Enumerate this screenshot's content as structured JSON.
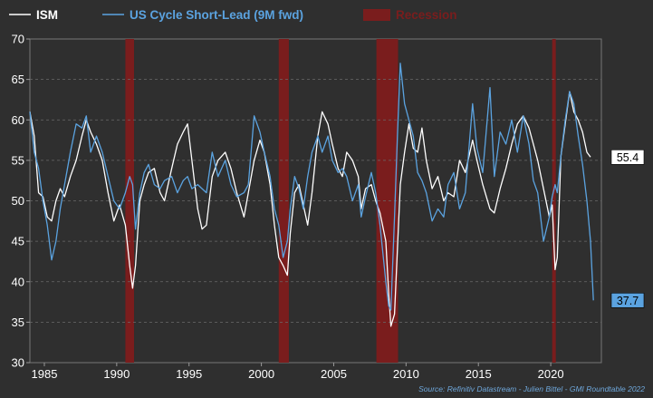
{
  "chart_data": {
    "type": "line",
    "xlim": [
      1984,
      2023.5
    ],
    "ylim": [
      30,
      70
    ],
    "x_ticks": [
      1985,
      1990,
      1995,
      2000,
      2005,
      2010,
      2015,
      2020
    ],
    "y_ticks": [
      30,
      35,
      40,
      45,
      50,
      55,
      60,
      65,
      70
    ],
    "grid": "horizontal-dashed",
    "legend_position": "top-left",
    "source": "Source: Refinitiv Datastream - Julien Bittel - GMI Roundtable 2022",
    "recession": {
      "name": "Recession",
      "color": "#7a1d1d",
      "periods": [
        [
          1990.6,
          1991.2
        ],
        [
          2001.2,
          2001.9
        ],
        [
          2007.95,
          2009.45
        ],
        [
          2020.1,
          2020.35
        ]
      ]
    },
    "series": [
      {
        "name": "ISM",
        "color": "#ffffff",
        "end_value": "55.4",
        "points": [
          [
            1984.0,
            61.0
          ],
          [
            1984.3,
            58.0
          ],
          [
            1984.6,
            51.0
          ],
          [
            1984.9,
            50.5
          ],
          [
            1985.2,
            48.0
          ],
          [
            1985.5,
            47.5
          ],
          [
            1985.8,
            50.0
          ],
          [
            1986.1,
            51.5
          ],
          [
            1986.4,
            50.5
          ],
          [
            1986.8,
            53.0
          ],
          [
            1987.2,
            55.0
          ],
          [
            1987.6,
            58.0
          ],
          [
            1987.9,
            60.0
          ],
          [
            1988.2,
            58.5
          ],
          [
            1988.6,
            57.0
          ],
          [
            1989.0,
            55.0
          ],
          [
            1989.4,
            51.0
          ],
          [
            1989.8,
            47.5
          ],
          [
            1990.2,
            49.5
          ],
          [
            1990.6,
            47.0
          ],
          [
            1990.9,
            42.0
          ],
          [
            1991.1,
            39.2
          ],
          [
            1991.3,
            42.0
          ],
          [
            1991.6,
            50.0
          ],
          [
            1991.9,
            52.0
          ],
          [
            1992.2,
            53.5
          ],
          [
            1992.6,
            54.0
          ],
          [
            1993.0,
            51.0
          ],
          [
            1993.3,
            50.0
          ],
          [
            1993.8,
            54.0
          ],
          [
            1994.2,
            57.0
          ],
          [
            1994.6,
            58.5
          ],
          [
            1994.9,
            59.5
          ],
          [
            1995.2,
            55.0
          ],
          [
            1995.6,
            49.0
          ],
          [
            1995.9,
            46.5
          ],
          [
            1996.2,
            47.0
          ],
          [
            1996.6,
            53.0
          ],
          [
            1997.0,
            55.0
          ],
          [
            1997.5,
            56.0
          ],
          [
            1997.9,
            54.0
          ],
          [
            1998.3,
            51.0
          ],
          [
            1998.8,
            48.0
          ],
          [
            1999.1,
            51.0
          ],
          [
            1999.5,
            55.0
          ],
          [
            1999.9,
            57.5
          ],
          [
            2000.2,
            56.0
          ],
          [
            2000.6,
            52.0
          ],
          [
            2000.9,
            47.0
          ],
          [
            2001.2,
            43.0
          ],
          [
            2001.5,
            42.0
          ],
          [
            2001.8,
            40.8
          ],
          [
            2002.0,
            46.0
          ],
          [
            2002.3,
            51.0
          ],
          [
            2002.6,
            52.0
          ],
          [
            2002.9,
            49.5
          ],
          [
            2003.2,
            47.0
          ],
          [
            2003.5,
            51.0
          ],
          [
            2003.9,
            58.0
          ],
          [
            2004.2,
            61.0
          ],
          [
            2004.6,
            59.5
          ],
          [
            2004.9,
            57.0
          ],
          [
            2005.3,
            54.0
          ],
          [
            2005.6,
            53.0
          ],
          [
            2005.9,
            56.0
          ],
          [
            2006.3,
            55.0
          ],
          [
            2006.7,
            53.0
          ],
          [
            2006.9,
            49.0
          ],
          [
            2007.2,
            51.5
          ],
          [
            2007.6,
            52.0
          ],
          [
            2007.9,
            50.0
          ],
          [
            2008.2,
            48.5
          ],
          [
            2008.6,
            45.0
          ],
          [
            2008.8,
            38.5
          ],
          [
            2008.95,
            34.5
          ],
          [
            2009.2,
            36.0
          ],
          [
            2009.4,
            44.0
          ],
          [
            2009.6,
            52.0
          ],
          [
            2009.9,
            56.0
          ],
          [
            2010.2,
            59.5
          ],
          [
            2010.5,
            56.5
          ],
          [
            2010.8,
            56.0
          ],
          [
            2011.1,
            59.0
          ],
          [
            2011.4,
            55.0
          ],
          [
            2011.8,
            51.5
          ],
          [
            2012.2,
            53.0
          ],
          [
            2012.6,
            50.0
          ],
          [
            2012.9,
            51.0
          ],
          [
            2013.3,
            50.5
          ],
          [
            2013.7,
            55.0
          ],
          [
            2014.1,
            53.5
          ],
          [
            2014.6,
            57.5
          ],
          [
            2014.9,
            55.0
          ],
          [
            2015.3,
            52.0
          ],
          [
            2015.8,
            49.0
          ],
          [
            2016.1,
            48.5
          ],
          [
            2016.5,
            51.5
          ],
          [
            2016.9,
            54.0
          ],
          [
            2017.3,
            57.0
          ],
          [
            2017.7,
            59.5
          ],
          [
            2018.1,
            60.5
          ],
          [
            2018.5,
            59.0
          ],
          [
            2018.8,
            57.0
          ],
          [
            2019.1,
            55.0
          ],
          [
            2019.5,
            51.5
          ],
          [
            2019.9,
            48.0
          ],
          [
            2020.1,
            49.5
          ],
          [
            2020.3,
            41.5
          ],
          [
            2020.45,
            43.0
          ],
          [
            2020.7,
            55.5
          ],
          [
            2021.0,
            59.5
          ],
          [
            2021.3,
            63.5
          ],
          [
            2021.6,
            61.0
          ],
          [
            2021.9,
            60.0
          ],
          [
            2022.2,
            58.5
          ],
          [
            2022.5,
            56.0
          ],
          [
            2022.75,
            55.4
          ]
        ]
      },
      {
        "name": "US Cycle Short-Lead (9M fwd)",
        "color": "#5ba3e0",
        "end_value": "37.7",
        "points": [
          [
            1984.0,
            61.0
          ],
          [
            1984.3,
            56.0
          ],
          [
            1984.6,
            54.0
          ],
          [
            1984.9,
            50.0
          ],
          [
            1985.2,
            47.0
          ],
          [
            1985.5,
            42.7
          ],
          [
            1985.8,
            45.0
          ],
          [
            1986.1,
            49.0
          ],
          [
            1986.4,
            52.0
          ],
          [
            1986.8,
            56.0
          ],
          [
            1987.2,
            59.5
          ],
          [
            1987.6,
            59.0
          ],
          [
            1987.9,
            60.5
          ],
          [
            1988.2,
            56.0
          ],
          [
            1988.6,
            58.0
          ],
          [
            1989.0,
            56.0
          ],
          [
            1989.4,
            53.0
          ],
          [
            1989.8,
            50.0
          ],
          [
            1990.2,
            49.0
          ],
          [
            1990.6,
            51.0
          ],
          [
            1990.9,
            53.0
          ],
          [
            1991.1,
            52.0
          ],
          [
            1991.3,
            46.5
          ],
          [
            1991.6,
            51.0
          ],
          [
            1991.9,
            53.5
          ],
          [
            1992.2,
            54.5
          ],
          [
            1992.6,
            52.0
          ],
          [
            1993.0,
            51.5
          ],
          [
            1993.3,
            52.5
          ],
          [
            1993.8,
            53.0
          ],
          [
            1994.2,
            51.0
          ],
          [
            1994.6,
            52.5
          ],
          [
            1994.9,
            53.0
          ],
          [
            1995.2,
            51.5
          ],
          [
            1995.6,
            52.0
          ],
          [
            1995.9,
            51.5
          ],
          [
            1996.2,
            51.0
          ],
          [
            1996.6,
            56.0
          ],
          [
            1997.0,
            53.0
          ],
          [
            1997.5,
            55.0
          ],
          [
            1997.9,
            52.0
          ],
          [
            1998.3,
            50.5
          ],
          [
            1998.8,
            51.0
          ],
          [
            1999.1,
            52.0
          ],
          [
            1999.5,
            60.5
          ],
          [
            1999.9,
            58.5
          ],
          [
            2000.2,
            56.0
          ],
          [
            2000.6,
            53.0
          ],
          [
            2000.9,
            49.0
          ],
          [
            2001.2,
            47.0
          ],
          [
            2001.5,
            43.0
          ],
          [
            2001.8,
            45.0
          ],
          [
            2002.0,
            49.0
          ],
          [
            2002.3,
            53.0
          ],
          [
            2002.6,
            51.5
          ],
          [
            2002.9,
            49.0
          ],
          [
            2003.2,
            53.0
          ],
          [
            2003.5,
            56.0
          ],
          [
            2003.9,
            58.0
          ],
          [
            2004.2,
            56.0
          ],
          [
            2004.6,
            58.0
          ],
          [
            2004.9,
            55.0
          ],
          [
            2005.3,
            53.5
          ],
          [
            2005.6,
            54.0
          ],
          [
            2005.9,
            53.0
          ],
          [
            2006.3,
            50.0
          ],
          [
            2006.7,
            52.0
          ],
          [
            2006.9,
            48.0
          ],
          [
            2007.2,
            50.5
          ],
          [
            2007.6,
            53.5
          ],
          [
            2007.9,
            51.0
          ],
          [
            2008.2,
            47.0
          ],
          [
            2008.6,
            40.0
          ],
          [
            2008.8,
            37.0
          ],
          [
            2008.95,
            36.5
          ],
          [
            2009.2,
            48.0
          ],
          [
            2009.4,
            58.0
          ],
          [
            2009.6,
            67.0
          ],
          [
            2009.9,
            62.0
          ],
          [
            2010.2,
            60.0
          ],
          [
            2010.5,
            58.0
          ],
          [
            2010.8,
            53.5
          ],
          [
            2011.1,
            52.5
          ],
          [
            2011.4,
            51.0
          ],
          [
            2011.8,
            47.5
          ],
          [
            2012.2,
            49.0
          ],
          [
            2012.6,
            48.0
          ],
          [
            2012.9,
            52.0
          ],
          [
            2013.3,
            53.5
          ],
          [
            2013.7,
            49.0
          ],
          [
            2014.1,
            51.0
          ],
          [
            2014.6,
            62.0
          ],
          [
            2014.9,
            56.5
          ],
          [
            2015.3,
            53.5
          ],
          [
            2015.8,
            64.0
          ],
          [
            2016.1,
            53.0
          ],
          [
            2016.5,
            58.5
          ],
          [
            2016.9,
            57.0
          ],
          [
            2017.3,
            60.0
          ],
          [
            2017.7,
            56.0
          ],
          [
            2018.1,
            60.5
          ],
          [
            2018.5,
            57.0
          ],
          [
            2018.8,
            52.5
          ],
          [
            2019.1,
            51.0
          ],
          [
            2019.5,
            45.0
          ],
          [
            2019.9,
            48.0
          ],
          [
            2020.1,
            50.5
          ],
          [
            2020.3,
            52.0
          ],
          [
            2020.45,
            51.0
          ],
          [
            2020.7,
            55.5
          ],
          [
            2021.0,
            60.0
          ],
          [
            2021.3,
            63.5
          ],
          [
            2021.6,
            62.0
          ],
          [
            2021.9,
            58.0
          ],
          [
            2022.2,
            54.5
          ],
          [
            2022.5,
            50.0
          ],
          [
            2022.75,
            45.0
          ],
          [
            2022.95,
            37.7
          ]
        ]
      }
    ]
  }
}
